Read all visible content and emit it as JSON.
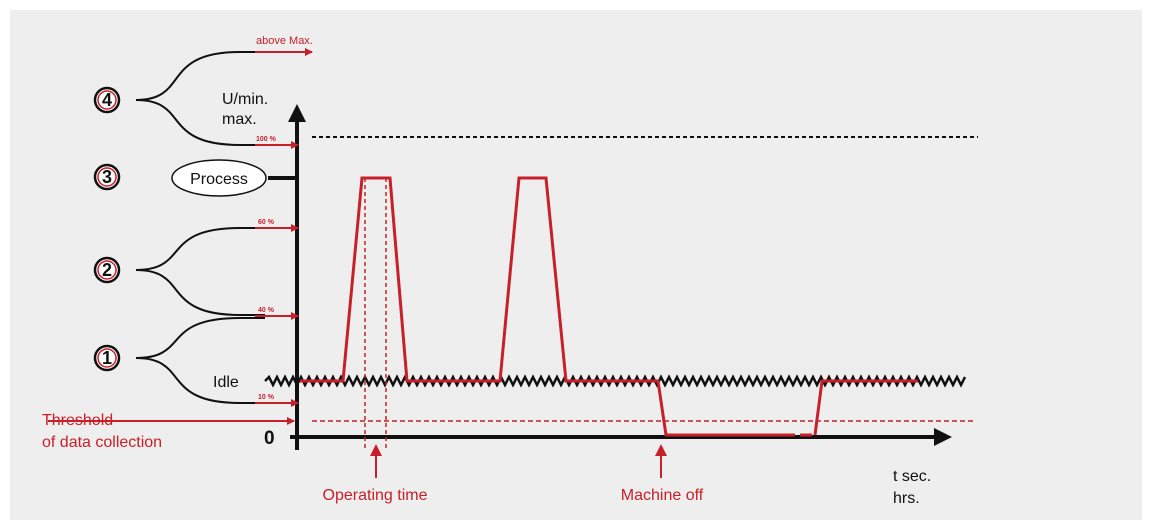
{
  "labels": {
    "above_max": "above Max.",
    "y_unit": "U/min.",
    "y_max": "max.",
    "process": "Process",
    "idle": "Idle",
    "threshold_line1": "Threshold",
    "threshold_line2": "of data collection",
    "zero": "0",
    "operating_time": "Operating time",
    "machine_off": "Machine off",
    "x_unit_line1": "t sec.",
    "x_unit_line2": "hrs."
  },
  "levels": {
    "p100": "100 %",
    "p60": "60 %",
    "p40": "40 %",
    "p10": "10 %"
  },
  "zones": {
    "z1": "1",
    "z2": "2",
    "z3": "3",
    "z4": "4"
  },
  "colors": {
    "accent_red": "#c8202a",
    "ink": "#111111",
    "panel": "#eeeeee"
  }
}
